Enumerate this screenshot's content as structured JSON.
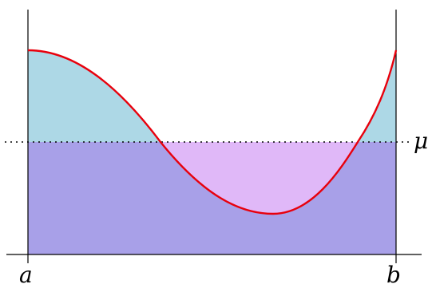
{
  "figure": {
    "label_mu": "μ",
    "label_a": "a",
    "label_b": "b"
  },
  "colors": {
    "area_above_mean": "#add8e6",
    "area_below_mean": "#a8a0e8",
    "gap_under_mean": "#e0b8f8",
    "curve": "#e8000c",
    "axes": "#000000"
  }
}
